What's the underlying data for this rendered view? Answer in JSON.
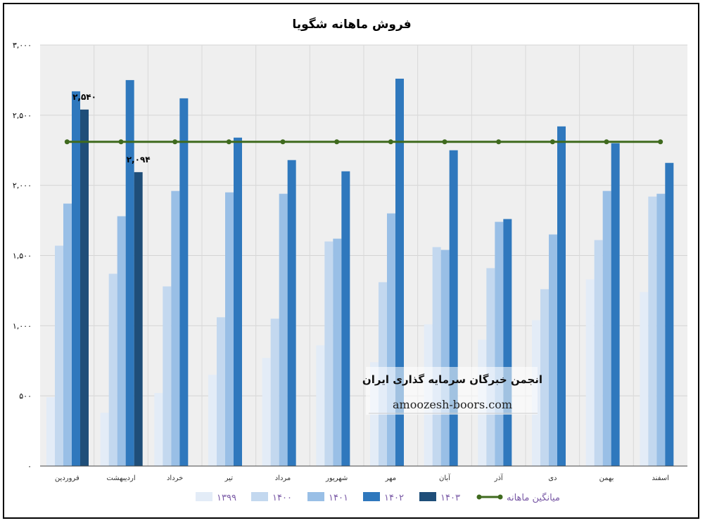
{
  "chart_data": {
    "type": "bar",
    "title": "فروش ماهانه شگویا",
    "xlabel": "",
    "ylabel": "",
    "ylim": [
      0,
      3000
    ],
    "yticks": [
      0,
      500,
      1000,
      1500,
      2000,
      2500,
      3000
    ],
    "ytick_labels": [
      "۰",
      "۵۰۰",
      "۱,۰۰۰",
      "۱,۵۰۰",
      "۲,۰۰۰",
      "۲,۵۰۰",
      "۳,۰۰۰"
    ],
    "grid": true,
    "legend_position": "bottom",
    "categories": [
      "فروردین",
      "اردیبهشت",
      "خرداد",
      "تیر",
      "مرداد",
      "شهریور",
      "مهر",
      "آبان",
      "آذر",
      "دی",
      "بهمن",
      "اسفند"
    ],
    "series": [
      {
        "name": "۱۳۹۹",
        "color": "#e3ecf7",
        "values": [
          490,
          380,
          520,
          650,
          770,
          860,
          740,
          1010,
          900,
          1040,
          1330,
          1240
        ]
      },
      {
        "name": "۱۴۰۰",
        "color": "#c3d8ef",
        "values": [
          1570,
          1370,
          1280,
          1060,
          1050,
          1600,
          1310,
          1560,
          1410,
          1260,
          1610,
          1920
        ]
      },
      {
        "name": "۱۴۰۱",
        "color": "#99bfe6",
        "values": [
          1870,
          1780,
          1960,
          1950,
          1940,
          1620,
          1800,
          1540,
          1740,
          1650,
          1960,
          1940
        ]
      },
      {
        "name": "۱۴۰۲",
        "color": "#2f78bd",
        "values": [
          2670,
          2750,
          2620,
          2340,
          2180,
          2100,
          2760,
          2250,
          1760,
          2420,
          2300,
          2160
        ]
      },
      {
        "name": "۱۴۰۳",
        "color": "#1f4e79",
        "values": [
          2540,
          2094,
          null,
          null,
          null,
          null,
          null,
          null,
          null,
          null,
          null,
          null
        ]
      }
    ],
    "average_line": {
      "name": "میانگین ماهانه",
      "color": "#3f6a1e",
      "value": 2310
    },
    "data_labels": [
      {
        "series": "۱۴۰۳",
        "category": "فروردین",
        "text": "۲,۵۴۰"
      },
      {
        "series": "۱۴۰۳",
        "category": "اردیبهشت",
        "text": "۲,۰۹۴"
      }
    ]
  },
  "watermark": {
    "org": "انجمن خبرگان سرمایه گذاری ایران",
    "site": "amoozesh-boors.com"
  }
}
